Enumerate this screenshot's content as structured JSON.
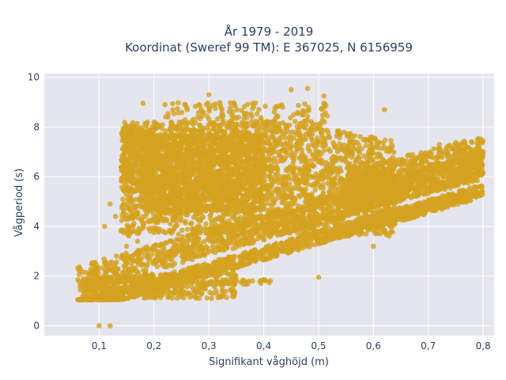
{
  "chart_data": {
    "type": "scatter",
    "title_line1": "År 1979 - 2019",
    "title_line2": "Koordinat (Sweref 99 TM): E 367025, N 6156959",
    "xlabel": "Signifikant våghöjd (m)",
    "ylabel": "Vågperiod (s)",
    "xlim": [
      0.0,
      0.82
    ],
    "ylim": [
      -0.4,
      10.15
    ],
    "x_ticks": [
      0.1,
      0.2,
      0.3,
      0.4,
      0.5,
      0.6,
      0.7,
      0.8
    ],
    "x_tick_labels": [
      "0,1",
      "0,2",
      "0,3",
      "0,4",
      "0,5",
      "0,6",
      "0,7",
      "0,8"
    ],
    "y_ticks": [
      0,
      2,
      4,
      6,
      8,
      10
    ],
    "y_tick_labels": [
      "0",
      "2",
      "4",
      "6",
      "8",
      "10"
    ],
    "grid": true,
    "marker_color": "#d4a21f",
    "plot_bg": "#e5e5ee",
    "outliers": [
      [
        0.075,
        1.4
      ],
      [
        0.08,
        1.5
      ],
      [
        0.1,
        0.0
      ],
      [
        0.12,
        0.0
      ],
      [
        0.12,
        4.9
      ],
      [
        0.11,
        4.0
      ],
      [
        0.13,
        4.4
      ],
      [
        0.18,
        8.95
      ],
      [
        0.22,
        8.9
      ],
      [
        0.3,
        9.3
      ],
      [
        0.48,
        9.55
      ],
      [
        0.51,
        9.25
      ],
      [
        0.45,
        9.5
      ],
      [
        0.62,
        8.7
      ],
      [
        0.5,
        1.95
      ],
      [
        0.35,
        1.8
      ],
      [
        0.4,
        1.85
      ],
      [
        0.3,
        1.75
      ],
      [
        0.8,
        7.0
      ],
      [
        0.78,
        6.0
      ],
      [
        0.17,
        3.4
      ],
      [
        0.15,
        3.2
      ],
      [
        0.09,
        2.25
      ],
      [
        0.2,
        3.75
      ],
      [
        0.4,
        4.8
      ],
      [
        0.45,
        3.05
      ],
      [
        0.55,
        3.6
      ],
      [
        0.6,
        3.2
      ],
      [
        0.72,
        7.3
      ],
      [
        0.69,
        5.9
      ]
    ]
  }
}
